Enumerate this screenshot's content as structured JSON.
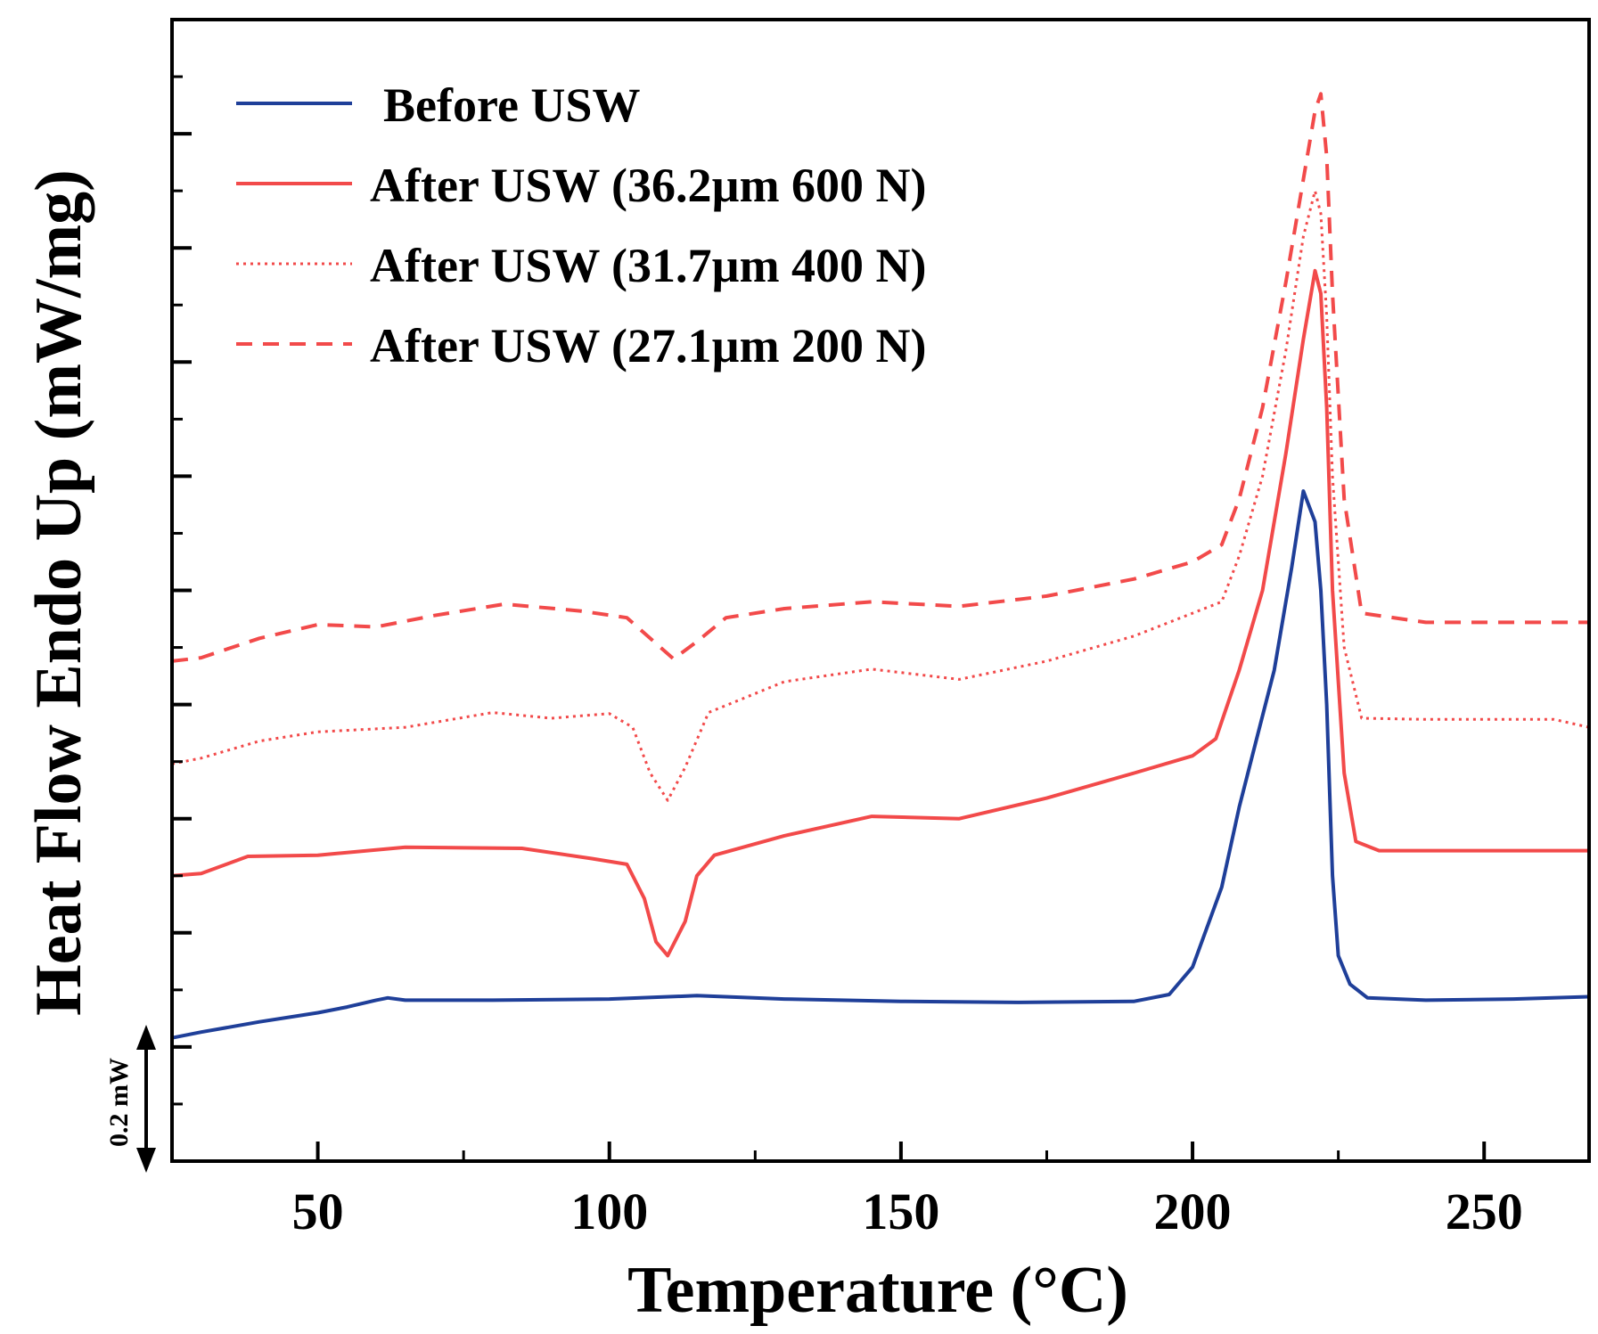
{
  "chart_data": {
    "type": "line",
    "title": "",
    "xlabel": "Temperature (°C)",
    "ylabel": "Heat Flow Endo Up (mW/mg)",
    "xlim": [
      25,
      268
    ],
    "ylim": [
      0,
      1
    ],
    "x_ticks": [
      50,
      100,
      150,
      200,
      250
    ],
    "x_minor_ticks": [
      75,
      125,
      175,
      225
    ],
    "y_tick_labels_shown": false,
    "scale_bar_label": "0.2 mW",
    "legend_position": "top-left",
    "series": [
      {
        "name": "Before USW",
        "color": "#1f3f99",
        "style": "solid",
        "points": [
          [
            25,
            0.108
          ],
          [
            30,
            0.113
          ],
          [
            40,
            0.122
          ],
          [
            50,
            0.13
          ],
          [
            55,
            0.135
          ],
          [
            60,
            0.141
          ],
          [
            62,
            0.143
          ],
          [
            65,
            0.141
          ],
          [
            80,
            0.141
          ],
          [
            100,
            0.142
          ],
          [
            115,
            0.145
          ],
          [
            130,
            0.142
          ],
          [
            150,
            0.14
          ],
          [
            170,
            0.139
          ],
          [
            190,
            0.14
          ],
          [
            196,
            0.146
          ],
          [
            200,
            0.17
          ],
          [
            205,
            0.24
          ],
          [
            208,
            0.31
          ],
          [
            211,
            0.37
          ],
          [
            214,
            0.43
          ],
          [
            217,
            0.52
          ],
          [
            219,
            0.587
          ],
          [
            221,
            0.56
          ],
          [
            222,
            0.5
          ],
          [
            223,
            0.4
          ],
          [
            224,
            0.25
          ],
          [
            225,
            0.18
          ],
          [
            227,
            0.155
          ],
          [
            230,
            0.143
          ],
          [
            240,
            0.141
          ],
          [
            255,
            0.142
          ],
          [
            268,
            0.144
          ]
        ]
      },
      {
        "name": "After USW (36.2µm 600 N)",
        "color": "#f24a4a",
        "style": "solid",
        "points": [
          [
            25,
            0.25
          ],
          [
            30,
            0.252
          ],
          [
            38,
            0.267
          ],
          [
            50,
            0.268
          ],
          [
            65,
            0.275
          ],
          [
            85,
            0.274
          ],
          [
            97,
            0.265
          ],
          [
            103,
            0.26
          ],
          [
            106,
            0.23
          ],
          [
            108,
            0.192
          ],
          [
            110,
            0.18
          ],
          [
            113,
            0.21
          ],
          [
            115,
            0.25
          ],
          [
            118,
            0.268
          ],
          [
            130,
            0.285
          ],
          [
            145,
            0.302
          ],
          [
            160,
            0.3
          ],
          [
            175,
            0.318
          ],
          [
            190,
            0.34
          ],
          [
            200,
            0.355
          ],
          [
            204,
            0.37
          ],
          [
            208,
            0.43
          ],
          [
            212,
            0.5
          ],
          [
            216,
            0.62
          ],
          [
            219,
            0.72
          ],
          [
            221,
            0.78
          ],
          [
            222,
            0.76
          ],
          [
            223,
            0.66
          ],
          [
            224,
            0.5
          ],
          [
            226,
            0.34
          ],
          [
            228,
            0.28
          ],
          [
            232,
            0.272
          ],
          [
            245,
            0.272
          ],
          [
            268,
            0.272
          ]
        ]
      },
      {
        "name": "After USW (31.7µm 400 N)",
        "color": "#f24a4a",
        "style": "dotted",
        "points": [
          [
            25,
            0.348
          ],
          [
            30,
            0.353
          ],
          [
            40,
            0.368
          ],
          [
            50,
            0.376
          ],
          [
            65,
            0.38
          ],
          [
            80,
            0.393
          ],
          [
            90,
            0.388
          ],
          [
            100,
            0.392
          ],
          [
            104,
            0.38
          ],
          [
            107,
            0.34
          ],
          [
            110,
            0.316
          ],
          [
            113,
            0.345
          ],
          [
            117,
            0.393
          ],
          [
            130,
            0.42
          ],
          [
            145,
            0.431
          ],
          [
            160,
            0.422
          ],
          [
            175,
            0.438
          ],
          [
            190,
            0.46
          ],
          [
            200,
            0.48
          ],
          [
            205,
            0.49
          ],
          [
            208,
            0.53
          ],
          [
            212,
            0.6
          ],
          [
            216,
            0.71
          ],
          [
            219,
            0.81
          ],
          [
            221,
            0.85
          ],
          [
            222,
            0.83
          ],
          [
            223,
            0.74
          ],
          [
            224,
            0.6
          ],
          [
            226,
            0.45
          ],
          [
            229,
            0.388
          ],
          [
            240,
            0.387
          ],
          [
            262,
            0.387
          ],
          [
            268,
            0.38
          ]
        ]
      },
      {
        "name": "After USW (27.1µm 200 N)",
        "color": "#f24a4a",
        "style": "dashed",
        "points": [
          [
            25,
            0.438
          ],
          [
            30,
            0.441
          ],
          [
            40,
            0.458
          ],
          [
            50,
            0.47
          ],
          [
            60,
            0.468
          ],
          [
            70,
            0.478
          ],
          [
            82,
            0.488
          ],
          [
            95,
            0.482
          ],
          [
            103,
            0.476
          ],
          [
            107,
            0.458
          ],
          [
            111,
            0.44
          ],
          [
            115,
            0.455
          ],
          [
            120,
            0.476
          ],
          [
            130,
            0.484
          ],
          [
            145,
            0.49
          ],
          [
            160,
            0.486
          ],
          [
            175,
            0.495
          ],
          [
            190,
            0.51
          ],
          [
            200,
            0.525
          ],
          [
            205,
            0.54
          ],
          [
            208,
            0.58
          ],
          [
            212,
            0.66
          ],
          [
            216,
            0.77
          ],
          [
            219,
            0.86
          ],
          [
            221,
            0.92
          ],
          [
            222,
            0.935
          ],
          [
            223,
            0.88
          ],
          [
            224,
            0.76
          ],
          [
            226,
            0.58
          ],
          [
            229,
            0.48
          ],
          [
            240,
            0.472
          ],
          [
            268,
            0.472
          ]
        ]
      }
    ]
  }
}
